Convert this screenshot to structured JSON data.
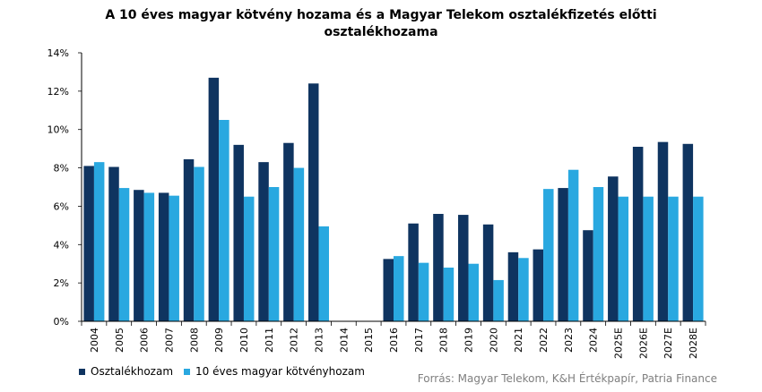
{
  "chart_data": {
    "type": "bar",
    "title_line1": "A 10 éves magyar kötvény hozama és a Magyar Telekom osztalékfizetés előtti",
    "title_line2": "osztalékhozama",
    "categories": [
      "2004",
      "2005",
      "2006",
      "2007",
      "2008",
      "2009",
      "2010",
      "2011",
      "2012",
      "2013",
      "2014",
      "2015",
      "2016",
      "2017",
      "2018",
      "2019",
      "2020",
      "2021",
      "2022",
      "2023",
      "2024",
      "2025E",
      "2026E",
      "2027E",
      "2028E"
    ],
    "series": [
      {
        "name": "Osztalékhozam",
        "color": "#0f3460",
        "values": [
          8.1,
          8.05,
          6.85,
          6.7,
          8.45,
          12.7,
          9.2,
          8.3,
          9.3,
          12.4,
          null,
          null,
          3.25,
          5.1,
          5.6,
          5.55,
          5.05,
          3.6,
          3.75,
          6.95,
          4.75,
          7.55,
          9.1,
          9.35,
          9.25
        ]
      },
      {
        "name": "10 éves magyar kötvényhozam",
        "color": "#29a8e0",
        "values": [
          8.3,
          6.95,
          6.7,
          6.55,
          8.05,
          10.5,
          6.5,
          7.0,
          8.0,
          4.95,
          null,
          null,
          3.4,
          3.05,
          2.8,
          3.0,
          2.15,
          3.3,
          6.9,
          7.9,
          7.0,
          6.5,
          6.5,
          6.5,
          6.5
        ]
      }
    ],
    "y_ticks": [
      "0%",
      "2%",
      "4%",
      "6%",
      "8%",
      "10%",
      "12%",
      "14%"
    ],
    "ylim": [
      0,
      14
    ],
    "legend_position": "bottom-left",
    "grid": false
  },
  "source": "Forrás: Magyar Telekom, K&H Értékpapír, Patria Finance"
}
